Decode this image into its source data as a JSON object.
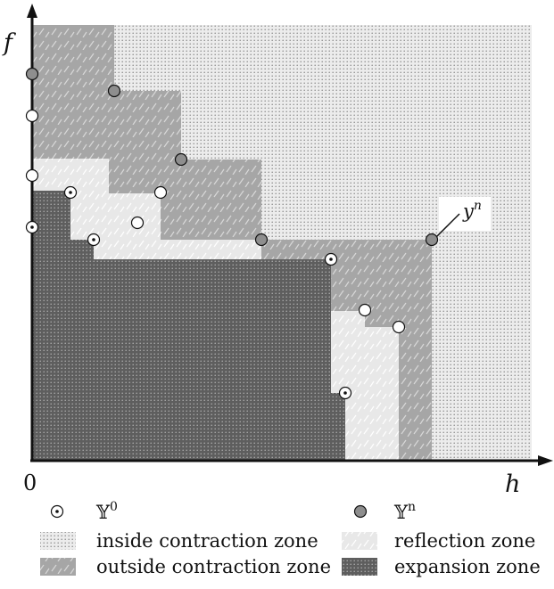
{
  "axes": {
    "x_label": "h",
    "y_label": "f",
    "origin_label": "0"
  },
  "callout": {
    "base": "y",
    "sup": "n"
  },
  "legend": {
    "markers": [
      {
        "id": "y0",
        "base": "𝕐",
        "sup": "0",
        "style": "white-dot"
      },
      {
        "id": "yn",
        "base": "𝕐",
        "sup": "n",
        "style": "gray-filled"
      }
    ],
    "zones": [
      {
        "id": "inside",
        "label": "inside contraction zone",
        "pattern": "fine-dots"
      },
      {
        "id": "reflection",
        "label": "reflection zone",
        "pattern": "light-dashes"
      },
      {
        "id": "outside",
        "label": "outside contraction zone",
        "pattern": "gray-dashes"
      },
      {
        "id": "expansion",
        "label": "expansion zone",
        "pattern": "dark-dots"
      }
    ]
  },
  "colors": {
    "inside_bg": "#ececec",
    "inside_dot": "#8a8a8a",
    "outside_bg": "#a6a6a6",
    "outside_dash": "#d8d8d8",
    "reflection_bg": "#e8e8e8",
    "reflection_dash": "#ffffff",
    "expansion_bg": "#5e5e5e",
    "expansion_dot": "#b0b0b0",
    "axis": "#111111",
    "gray_marker": "#8e8e8e"
  }
}
